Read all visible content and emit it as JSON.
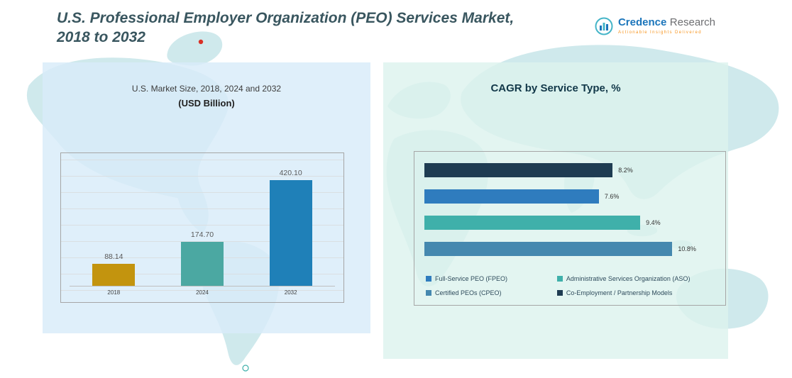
{
  "header": {
    "title_line1": "U.S. Professional Employer Organization (PEO) Services Market,",
    "title_line2": "2018 to 2032"
  },
  "logo": {
    "name1": "Credence",
    "name2": "Research",
    "tagline": "Actionable Insights Delivered"
  },
  "left_panel": {
    "subtitle": "U.S. Market Size, 2018, 2024 and 2032",
    "unit_label": "(USD Billion)"
  },
  "right_panel": {
    "title": "CAGR by Service Type, %"
  },
  "chart_data": [
    {
      "type": "bar",
      "title": "U.S. Market Size, 2018, 2024 and 2032 (USD Billion)",
      "categories": [
        "2018",
        "2024",
        "2032"
      ],
      "values": [
        88.14,
        174.7,
        420.1
      ],
      "value_labels": [
        "88.14",
        "174.70",
        "420.10"
      ],
      "colors": [
        "#C3940E",
        "#4BA8A2",
        "#1F80B8"
      ],
      "ylabel": "USD Billion",
      "ylim": [
        0,
        450
      ],
      "grid": true,
      "legend_position": "none"
    },
    {
      "type": "bar",
      "orientation": "horizontal",
      "title": "CAGR by Service Type, %",
      "categories": [
        "Co-Employment / Partnership Models",
        "Full-Service PEO (FPEO)",
        "Administrative Services Organization (ASO)",
        "Certified PEOs (CPEO)"
      ],
      "values": [
        8.2,
        7.6,
        9.4,
        10.8
      ],
      "value_labels": [
        "8.2%",
        "7.6%",
        "9.4%",
        "10.8%"
      ],
      "colors": [
        "#1E3C52",
        "#2F7CBE",
        "#3FB0AA",
        "#4588AF"
      ],
      "xlim": [
        0,
        11.5
      ],
      "grid": false,
      "legend_position": "bottom",
      "legend": [
        {
          "label": "Full-Service PEO (FPEO)",
          "color": "#2F7CBE"
        },
        {
          "label": "Administrative Services Organization (ASO)",
          "color": "#3FB0AA"
        },
        {
          "label": "Certified PEOs (CPEO)",
          "color": "#4588AF"
        },
        {
          "label": "Co-Employment / Partnership Models",
          "color": "#1E3C52"
        }
      ]
    }
  ]
}
